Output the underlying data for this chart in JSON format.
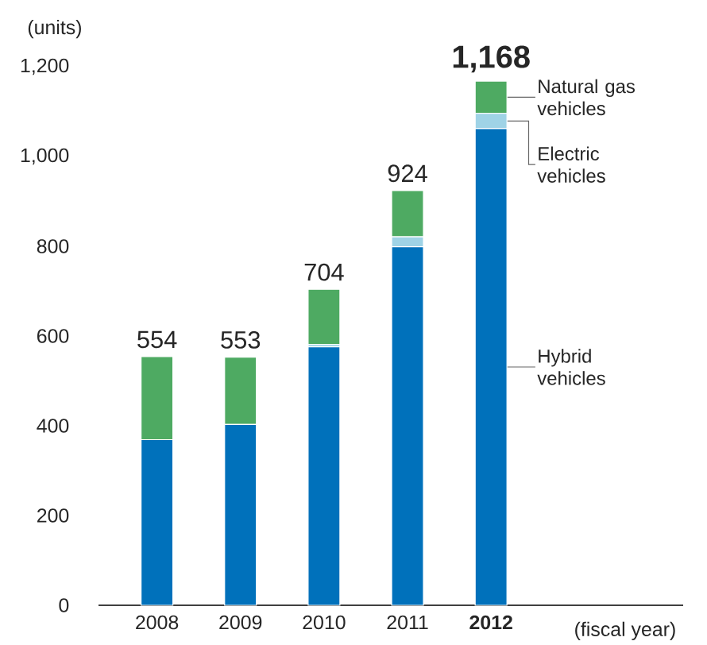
{
  "chart_data": {
    "type": "bar",
    "stacked": true,
    "ylabel": "(units)",
    "xlabel": "(fiscal year)",
    "categories": [
      "2008",
      "2009",
      "2010",
      "2011",
      "**2012**"
    ],
    "series": [
      {
        "name": "Hybrid vehicles",
        "color": "#0071bb",
        "values": [
          369,
          403,
          576,
          799,
          1062
        ]
      },
      {
        "name": "Electric vehicles",
        "color": "#9fd3e6",
        "values": [
          0,
          0,
          5,
          22,
          34
        ]
      },
      {
        "name": "Natural gas vehicles",
        "color": "#4eaa62",
        "values": [
          185,
          150,
          123,
          103,
          72
        ]
      }
    ],
    "totals": [
      "554",
      "553",
      "704",
      "924",
      "**1,168**"
    ],
    "ylim": [
      0,
      1200
    ],
    "yticks": [
      0,
      200,
      400,
      600,
      800,
      {
        "value": 1000,
        "label": "1,000"
      },
      {
        "value": 1200,
        "label": "1,200"
      }
    ],
    "grid": false
  }
}
